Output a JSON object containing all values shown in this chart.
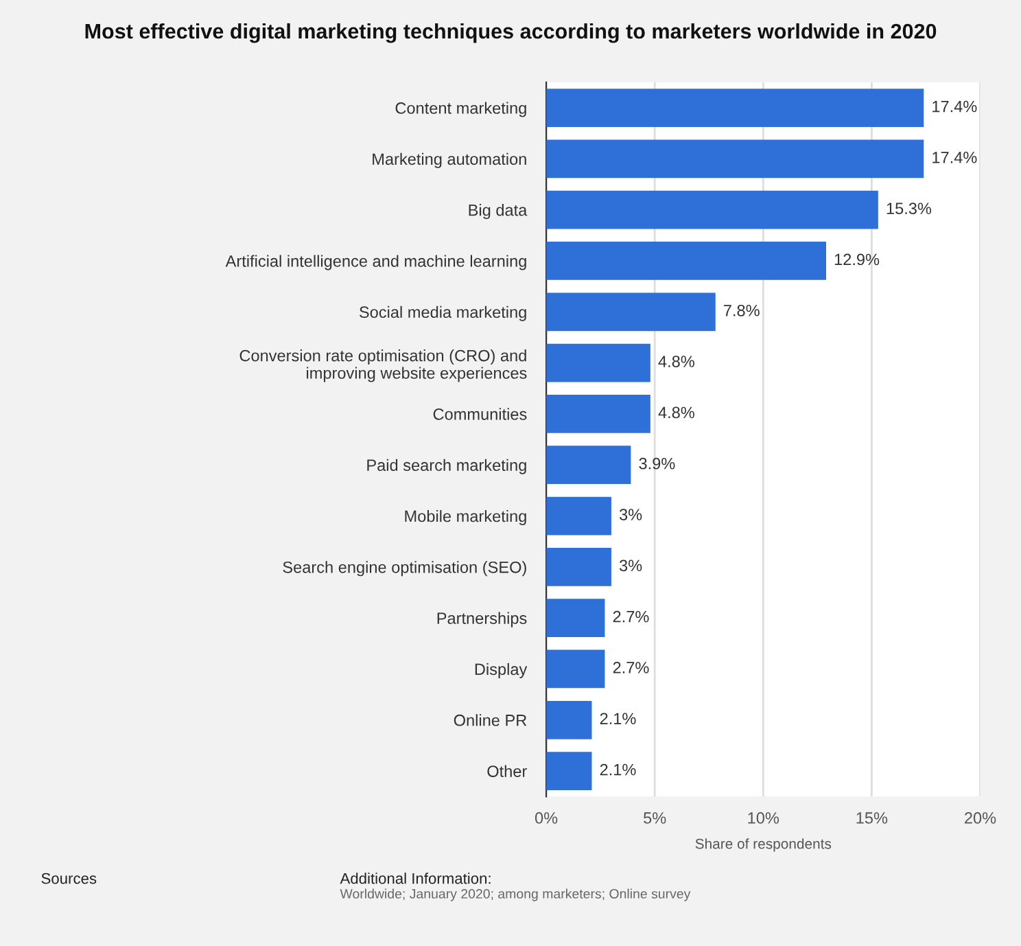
{
  "chart_data": {
    "type": "bar",
    "orientation": "horizontal",
    "title": "Most effective digital marketing techniques according to marketers worldwide in 2020",
    "xlabel": "Share of respondents",
    "categories": [
      "Content marketing",
      "Marketing automation",
      "Big data",
      "Artificial intelligence and machine learning",
      "Social media marketing",
      "Conversion rate optimisation (CRO) and\nimproving website experiences",
      "Communities",
      "Paid search marketing",
      "Mobile marketing",
      "Search engine optimisation (SEO)",
      "Partnerships",
      "Display",
      "Online PR",
      "Other"
    ],
    "values": [
      17.4,
      17.4,
      15.3,
      12.9,
      7.8,
      4.8,
      4.8,
      3.9,
      3,
      3,
      2.7,
      2.7,
      2.1,
      2.1
    ],
    "value_labels": [
      "17.4%",
      "17.4%",
      "15.3%",
      "12.9%",
      "7.8%",
      "4.8%",
      "4.8%",
      "3.9%",
      "3%",
      "3%",
      "2.7%",
      "2.7%",
      "2.1%",
      "2.1%"
    ],
    "color": "#2f6fd8",
    "xlim": [
      0,
      20
    ],
    "xticks": [
      {
        "value": 0,
        "label": "0%"
      },
      {
        "value": 5,
        "label": "5%"
      },
      {
        "value": 10,
        "label": "10%"
      },
      {
        "value": 15,
        "label": "15%"
      },
      {
        "value": 20,
        "label": "20%"
      }
    ],
    "grid": "x",
    "legend": false,
    "annotations": [
      "Sources",
      "Additional Information:",
      "Worldwide; January 2020; among marketers; Online survey"
    ]
  }
}
